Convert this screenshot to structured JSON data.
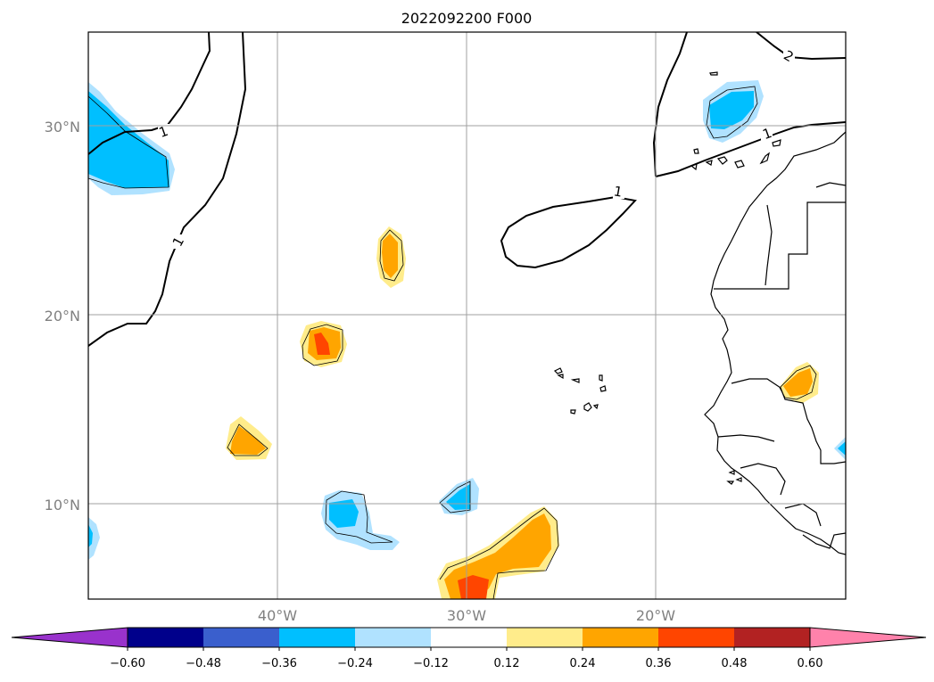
{
  "title": "2022092200 F000",
  "axes": {
    "lat_labels": [
      "30°N",
      "20°N",
      "10°N"
    ],
    "lon_labels": [
      "40°W",
      "30°W",
      "20°W"
    ]
  },
  "map": {
    "extent": {
      "lon": [
        -50,
        -10
      ],
      "lat": [
        5,
        35
      ]
    },
    "gridlines": true,
    "contour_labels": [
      "1",
      "1",
      "1",
      "1",
      "2"
    ]
  },
  "colorbar": {
    "colors": [
      "#9932cc",
      "#00008b",
      "#3a5fcd",
      "#00bfff",
      "#b0e2ff",
      "#ffffff",
      "#ffec8b",
      "#ffa500",
      "#ff4500",
      "#b22222",
      "#ff82ab"
    ],
    "tick_labels": [
      "−0.60",
      "−0.48",
      "−0.36",
      "−0.24",
      "−0.12",
      "0.12",
      "0.24",
      "0.36",
      "0.48",
      "0.60"
    ],
    "extend": "both"
  }
}
